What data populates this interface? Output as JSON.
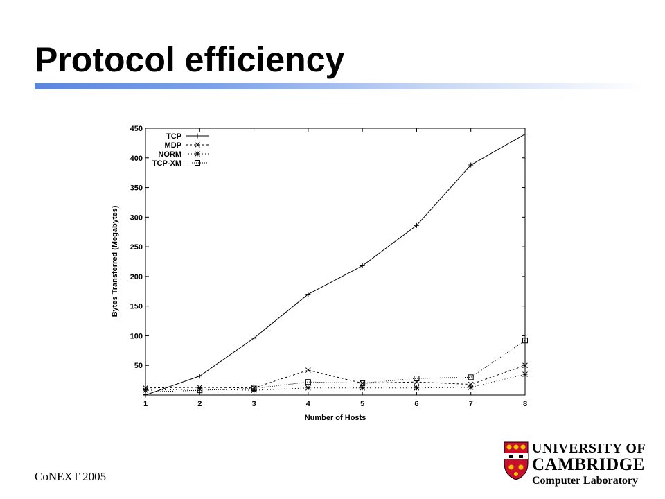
{
  "slide": {
    "title": "Protocol efficiency",
    "footer": "CoNEXT 2005",
    "logo": {
      "line1": "UNIVERSITY OF",
      "line2": "CAMBRIDGE",
      "line3": "Computer Laboratory"
    }
  },
  "colors": {
    "title_rule": "#5a86e0",
    "shield_red": "#c8102e",
    "shield_gold": "#f2c300"
  },
  "chart_data": {
    "type": "line",
    "title": "",
    "xlabel": "Number of Hosts",
    "ylabel": "Bytes Transferred (Megabytes)",
    "x": [
      1,
      2,
      3,
      4,
      5,
      6,
      7,
      8
    ],
    "xlim": [
      1,
      8
    ],
    "ylim": [
      0,
      450
    ],
    "xticks": [
      1,
      2,
      3,
      4,
      5,
      6,
      7,
      8
    ],
    "yticks": [
      50,
      100,
      150,
      200,
      250,
      300,
      350,
      400,
      450
    ],
    "grid": false,
    "legend": "top-left",
    "series": [
      {
        "name": "TCP",
        "marker": "plus",
        "dash": "none",
        "values": [
          0,
          32,
          96,
          170,
          218,
          286,
          388,
          440
        ]
      },
      {
        "name": "MDP",
        "marker": "cross",
        "dash": "3,3",
        "values": [
          12,
          13,
          12,
          42,
          20,
          22,
          18,
          50
        ]
      },
      {
        "name": "NORM",
        "marker": "star",
        "dash": "1,3",
        "values": [
          8,
          10,
          8,
          12,
          12,
          12,
          13,
          35
        ]
      },
      {
        "name": "TCP-XM",
        "marker": "square",
        "dash": "1,2",
        "values": [
          5,
          8,
          11,
          22,
          20,
          28,
          30,
          92
        ]
      }
    ]
  }
}
